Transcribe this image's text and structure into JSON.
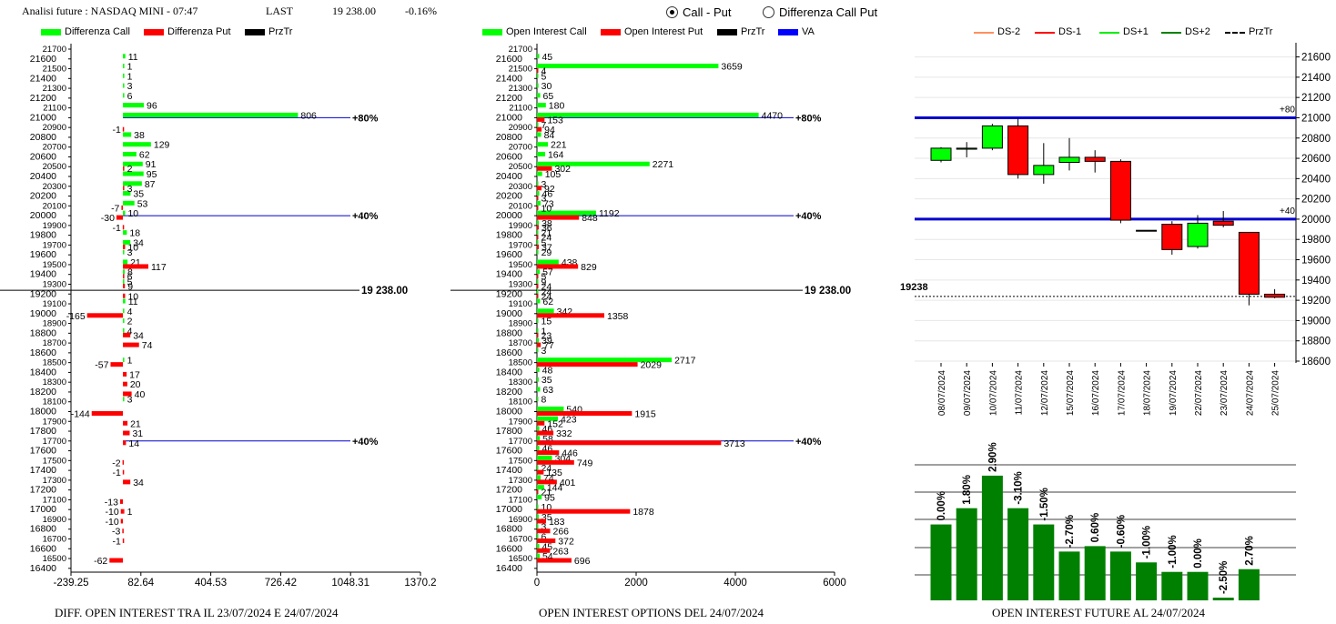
{
  "header": {
    "title": "Analisi future : NASDAQ MINI - 07:47",
    "last_label": "LAST",
    "last_value": "19 238.00",
    "change": "-0.16%"
  },
  "view_options": [
    {
      "label": "Call - Put",
      "selected": true
    },
    {
      "label": "Differenza Call Put",
      "selected": false
    }
  ],
  "colors": {
    "call": "#00ff00",
    "put": "#ff0000",
    "blue": "#0000cc",
    "bar_green": "#008000"
  },
  "legend_left": [
    "Differenza Call",
    "Differenza Put",
    "PrzTr"
  ],
  "legend_mid": [
    "Open Interest Call",
    "Open Interest Put",
    "PrzTr",
    "VA"
  ],
  "legend_right": [
    "DS-2",
    "DS-1",
    "DS+1",
    "DS+2",
    "PrzTr"
  ],
  "footers": {
    "left": "DIFF. OPEN INTEREST TRA IL 23/07/2024 E 24/07/2024",
    "mid": "OPEN INTEREST OPTIONS DEL 24/07/2024",
    "right": "OPEN INTEREST FUTURE AL 24/07/2024"
  },
  "chart_data": [
    {
      "type": "bar",
      "orientation": "horizontal",
      "strikes": [
        21700,
        21600,
        21500,
        21400,
        21300,
        21200,
        21100,
        21000,
        20900,
        20800,
        20700,
        20600,
        20500,
        20400,
        20300,
        20200,
        20100,
        20000,
        19900,
        19800,
        19700,
        19600,
        19500,
        19400,
        19300,
        19200,
        19100,
        19000,
        18900,
        18800,
        18700,
        18600,
        18500,
        18400,
        18300,
        18200,
        18100,
        18000,
        17900,
        17800,
        17700,
        17600,
        17500,
        17400,
        17300,
        17200,
        17100,
        17000,
        16900,
        16800,
        16700,
        16600,
        16500,
        16400
      ],
      "yticks": [
        21700,
        21600,
        21500,
        21400,
        21300,
        21200,
        21100,
        21000,
        20900,
        20800,
        20700,
        20600,
        20500,
        20400,
        20300,
        20200,
        20100,
        20000,
        19900,
        19800,
        19700,
        19600,
        19500,
        19400,
        19300,
        19200,
        19100,
        19000,
        18900,
        18800,
        18700,
        18600,
        18500,
        18400,
        18300,
        18200,
        18100,
        18000,
        17900,
        17800,
        17700,
        17600,
        17500,
        17400,
        17300,
        17200,
        17100,
        17000,
        16900,
        16800,
        16700,
        16600,
        16500,
        16400
      ],
      "xticks": [
        "-239.25",
        "82.64",
        "404.53",
        "726.42",
        "1048.31",
        "1370.2"
      ],
      "xlim": [
        -239.25,
        1370.2
      ],
      "series": [
        {
          "name": "Differenza Call",
          "points": [
            [
              21600,
              11
            ],
            [
              21500,
              1
            ],
            [
              21400,
              1
            ],
            [
              21300,
              3
            ],
            [
              21200,
              6
            ],
            [
              21100,
              96
            ],
            [
              21000,
              806
            ],
            [
              20800,
              38
            ],
            [
              20700,
              129
            ],
            [
              20600,
              62
            ],
            [
              20500,
              91
            ],
            [
              20400,
              95
            ],
            [
              20300,
              87
            ],
            [
              20200,
              35
            ],
            [
              20100,
              53
            ],
            [
              20000,
              10
            ],
            [
              19800,
              18
            ],
            [
              19700,
              34
            ],
            [
              19600,
              3
            ],
            [
              19500,
              21
            ],
            [
              19400,
              8
            ],
            [
              19300,
              5
            ],
            [
              19100,
              11
            ],
            [
              19000,
              4
            ],
            [
              18900,
              2
            ],
            [
              18800,
              4
            ],
            [
              18500,
              1
            ],
            [
              18100,
              3
            ]
          ]
        },
        {
          "name": "Differenza Put",
          "points": [
            [
              20900,
              -1
            ],
            [
              20500,
              2
            ],
            [
              20300,
              3
            ],
            [
              20100,
              -7
            ],
            [
              20000,
              -30
            ],
            [
              19900,
              -1
            ],
            [
              19700,
              10
            ],
            [
              19500,
              117
            ],
            [
              19400,
              6
            ],
            [
              19300,
              9
            ],
            [
              19200,
              10
            ],
            [
              19000,
              -165
            ],
            [
              18800,
              34
            ],
            [
              18700,
              74
            ],
            [
              18500,
              -57
            ],
            [
              18400,
              17
            ],
            [
              18300,
              20
            ],
            [
              18200,
              40
            ],
            [
              18000,
              -144
            ],
            [
              17900,
              21
            ],
            [
              17800,
              31
            ],
            [
              17700,
              14
            ],
            [
              17500,
              -2
            ],
            [
              17400,
              -1
            ],
            [
              17300,
              34
            ],
            [
              17100,
              -13
            ],
            [
              17000,
              -10
            ],
            [
              17000,
              1
            ],
            [
              16900,
              -10
            ],
            [
              16800,
              -3
            ],
            [
              16700,
              -1
            ],
            [
              16500,
              -62
            ]
          ]
        }
      ],
      "reference_lines": [
        {
          "level": 21000,
          "label": "80%"
        },
        {
          "level": 20000,
          "label": "40%"
        },
        {
          "level": 17700,
          "label": "40%"
        }
      ],
      "price_line": {
        "level": 19238,
        "label": "19 238.00"
      }
    },
    {
      "type": "bar",
      "orientation": "horizontal",
      "strikes": [
        21700,
        21600,
        21500,
        21400,
        21300,
        21200,
        21100,
        21000,
        20900,
        20800,
        20700,
        20600,
        20500,
        20400,
        20300,
        20200,
        20100,
        20000,
        19900,
        19800,
        19700,
        19600,
        19500,
        19400,
        19300,
        19200,
        19100,
        19000,
        18900,
        18800,
        18700,
        18600,
        18500,
        18400,
        18300,
        18200,
        18100,
        18000,
        17900,
        17800,
        17700,
        17600,
        17500,
        17400,
        17300,
        17200,
        17100,
        17000,
        16900,
        16800,
        16700,
        16600,
        16500,
        16400
      ],
      "yticks": [
        21700,
        21600,
        21500,
        21400,
        21300,
        21200,
        21100,
        21000,
        20900,
        20800,
        20700,
        20600,
        20500,
        20400,
        20300,
        20200,
        20100,
        20000,
        19900,
        19800,
        19700,
        19600,
        19500,
        19400,
        19300,
        19200,
        19100,
        19000,
        18900,
        18800,
        18700,
        18600,
        18500,
        18400,
        18300,
        18200,
        18100,
        18000,
        17900,
        17800,
        17700,
        17600,
        17500,
        17400,
        17300,
        17200,
        17100,
        17000,
        16900,
        16800,
        16700,
        16600,
        16500,
        16400
      ],
      "xticks": [
        "0",
        "2000",
        "4000",
        "6000"
      ],
      "xlim": [
        0,
        6000
      ],
      "series": [
        {
          "name": "Open Interest Call",
          "points": [
            [
              21600,
              45
            ],
            [
              21500,
              3659
            ],
            [
              21400,
              5
            ],
            [
              21300,
              30
            ],
            [
              21200,
              65
            ],
            [
              21100,
              180
            ],
            [
              21000,
              4470
            ],
            [
              20900,
              7
            ],
            [
              20800,
              84
            ],
            [
              20700,
              221
            ],
            [
              20600,
              164
            ],
            [
              20500,
              2271
            ],
            [
              20400,
              105
            ],
            [
              20300,
              3
            ],
            [
              20200,
              46
            ],
            [
              20100,
              73
            ],
            [
              20000,
              1192
            ],
            [
              19900,
              38
            ],
            [
              19800,
              21
            ],
            [
              19700,
              5
            ],
            [
              19600,
              29
            ],
            [
              19500,
              438
            ],
            [
              19400,
              57
            ],
            [
              19300,
              9
            ],
            [
              19200,
              24
            ],
            [
              19100,
              62
            ],
            [
              19000,
              342
            ],
            [
              18900,
              15
            ],
            [
              18800,
              1
            ],
            [
              18700,
              39
            ],
            [
              18600,
              3
            ],
            [
              18500,
              2717
            ],
            [
              18400,
              48
            ],
            [
              18300,
              35
            ],
            [
              18200,
              63
            ],
            [
              18100,
              8
            ],
            [
              18000,
              540
            ],
            [
              17900,
              423
            ],
            [
              17800,
              46
            ],
            [
              17700,
              58
            ],
            [
              17600,
              46
            ],
            [
              17500,
              304
            ],
            [
              17400,
              24
            ],
            [
              17300,
              74
            ],
            [
              17200,
              144
            ],
            [
              17100,
              95
            ],
            [
              17000,
              10
            ],
            [
              16900,
              35
            ],
            [
              16800,
              3
            ],
            [
              16700,
              6
            ],
            [
              16600,
              45
            ],
            [
              16500,
              54
            ]
          ]
        },
        {
          "name": "Open Interest Put",
          "points": [
            [
              21500,
              4
            ],
            [
              21000,
              153
            ],
            [
              20900,
              94
            ],
            [
              20500,
              302
            ],
            [
              20300,
              92
            ],
            [
              20200,
              3
            ],
            [
              20100,
              10
            ],
            [
              20000,
              848
            ],
            [
              19900,
              36
            ],
            [
              19800,
              24
            ],
            [
              19700,
              37
            ],
            [
              19500,
              829
            ],
            [
              19400,
              5
            ],
            [
              19300,
              24
            ],
            [
              19200,
              24
            ],
            [
              19000,
              1358
            ],
            [
              18800,
              23
            ],
            [
              18700,
              77
            ],
            [
              18500,
              2029
            ],
            [
              18000,
              1915
            ],
            [
              17900,
              152
            ],
            [
              17800,
              332
            ],
            [
              17700,
              3713
            ],
            [
              17600,
              446
            ],
            [
              17500,
              749
            ],
            [
              17400,
              135
            ],
            [
              17300,
              401
            ],
            [
              17200,
              21
            ],
            [
              17000,
              1878
            ],
            [
              16900,
              183
            ],
            [
              16800,
              266
            ],
            [
              16700,
              372
            ],
            [
              16600,
              263
            ],
            [
              16500,
              696
            ]
          ]
        }
      ],
      "reference_lines": [
        {
          "level": 21000,
          "label": "80%"
        },
        {
          "level": 20000,
          "label": "40%"
        },
        {
          "level": 17700,
          "label": "40%"
        }
      ],
      "price_line": {
        "level": 19238,
        "label": "19 238.00"
      }
    },
    {
      "type": "candlestick",
      "dates": [
        "08/07/2024",
        "09/07/2024",
        "10/07/2024",
        "11/07/2024",
        "12/07/2024",
        "15/07/2024",
        "16/07/2024",
        "17/07/2024",
        "18/07/2024",
        "19/07/2024",
        "22/07/2024",
        "23/07/2024",
        "24/07/2024",
        "25/07/2024"
      ],
      "candles": [
        {
          "open": 20580,
          "close": 20700,
          "high": 20710,
          "low": 20560
        },
        {
          "open": 20690,
          "close": 20700,
          "high": 20760,
          "low": 20610
        },
        {
          "open": 20700,
          "close": 20920,
          "high": 20940,
          "low": 20680
        },
        {
          "open": 20920,
          "close": 20440,
          "high": 20990,
          "low": 20400
        },
        {
          "open": 20440,
          "close": 20530,
          "high": 20750,
          "low": 20350
        },
        {
          "open": 20560,
          "close": 20610,
          "high": 20800,
          "low": 20480
        },
        {
          "open": 20610,
          "close": 20570,
          "high": 20680,
          "low": 20460
        },
        {
          "open": 20570,
          "close": 19990,
          "high": 20590,
          "low": 19960
        },
        {
          "open": 19890,
          "close": 19890,
          "high": 19890,
          "low": 19890
        },
        {
          "open": 19950,
          "close": 19700,
          "high": 19980,
          "low": 19650
        },
        {
          "open": 19730,
          "close": 19960,
          "high": 20040,
          "low": 19710
        },
        {
          "open": 19980,
          "close": 19940,
          "high": 20080,
          "low": 19920
        },
        {
          "open": 19870,
          "close": 19260,
          "high": 19870,
          "low": 19150
        },
        {
          "open": 19260,
          "close": 19230,
          "high": 19310,
          "low": 19220
        }
      ],
      "yticks": [
        21600,
        21400,
        21200,
        21000,
        20800,
        20600,
        20400,
        20200,
        20000,
        19800,
        19600,
        19400,
        19200,
        19000,
        18800,
        18600
      ],
      "ylim": [
        18600,
        21650
      ],
      "levels": [
        {
          "level": 21000,
          "label": "+80"
        },
        {
          "level": 20000,
          "label": "+40"
        }
      ],
      "price_line": {
        "level": 19238,
        "label": "19238"
      }
    },
    {
      "type": "bar",
      "labels": [
        "0.00%",
        "1.80%",
        "2.90%",
        "-3.10%",
        "-1.50%",
        "-2.70%",
        "0.60%",
        "-0.60%",
        "-1.00%",
        "-1.00%",
        "0.00%",
        "-2.50%",
        "2.70%"
      ],
      "values": [
        0.0,
        1.8,
        2.9,
        -3.1,
        -1.5,
        -2.7,
        0.6,
        -0.6,
        -1.0,
        -1.0,
        0.0,
        -2.5,
        2.7
      ],
      "heights_relative": [
        0.56,
        0.68,
        0.92,
        0.68,
        0.56,
        0.36,
        0.4,
        0.36,
        0.28,
        0.21,
        0.21,
        0.02,
        0.23
      ]
    }
  ]
}
